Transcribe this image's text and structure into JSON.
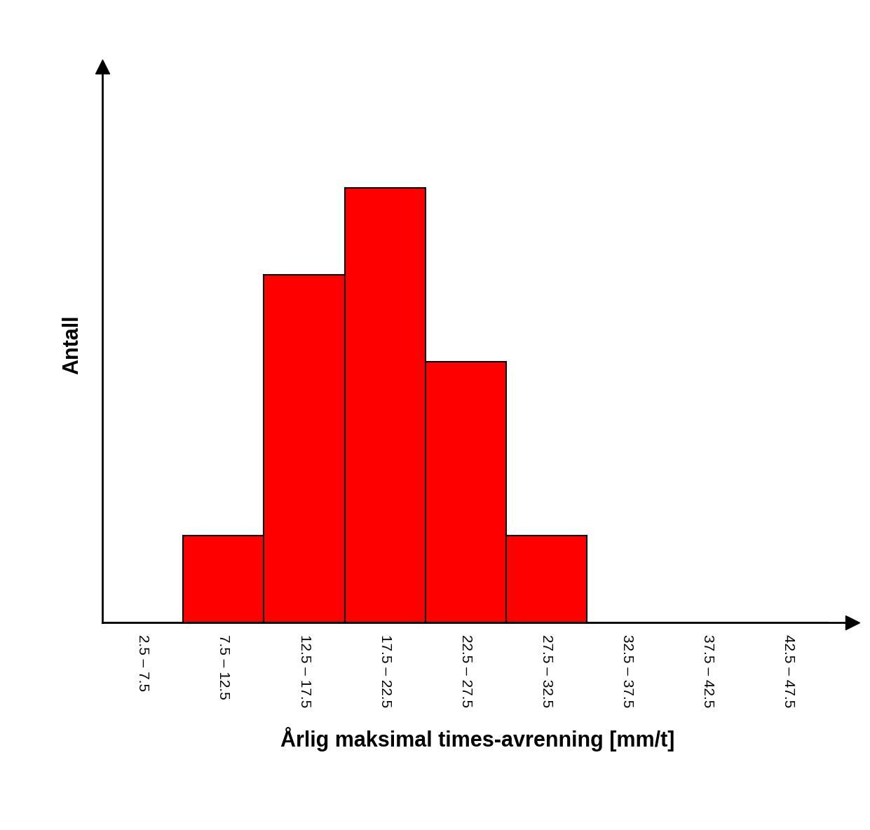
{
  "chart_data": {
    "type": "histogram",
    "x_label": "Årlig maksimal times-avrenning [mm/t]",
    "y_label": "Antall",
    "bins": [
      2.5,
      7.5,
      12.5,
      17.5,
      22.5,
      27.5,
      32.5,
      37.5,
      42.5,
      47.5
    ],
    "counts": [
      0,
      1,
      4,
      5,
      3,
      1,
      0,
      0,
      0
    ],
    "color": "#ff0000",
    "xlim": [
      2.5,
      49
    ],
    "ylim": [
      0,
      6.4
    ],
    "xticks": [
      {
        "value": 5,
        "label": "2.5 – 7.5"
      },
      {
        "value": 10,
        "label": "7.5 – 12.5"
      },
      {
        "value": 15,
        "label": "12.5 – 17.5"
      },
      {
        "value": 20,
        "label": "17.5 – 22.5"
      },
      {
        "value": 25,
        "label": "22.5 – 27.5"
      },
      {
        "value": 30,
        "label": "27.5 – 32.5"
      },
      {
        "value": 35,
        "label": "32.5 – 37.5"
      },
      {
        "value": 40,
        "label": "37.5 – 42.5"
      },
      {
        "value": 45,
        "label": "42.5 – 47.5"
      }
    ],
    "yticks": [],
    "tick_labels": "x",
    "grid": false
  }
}
